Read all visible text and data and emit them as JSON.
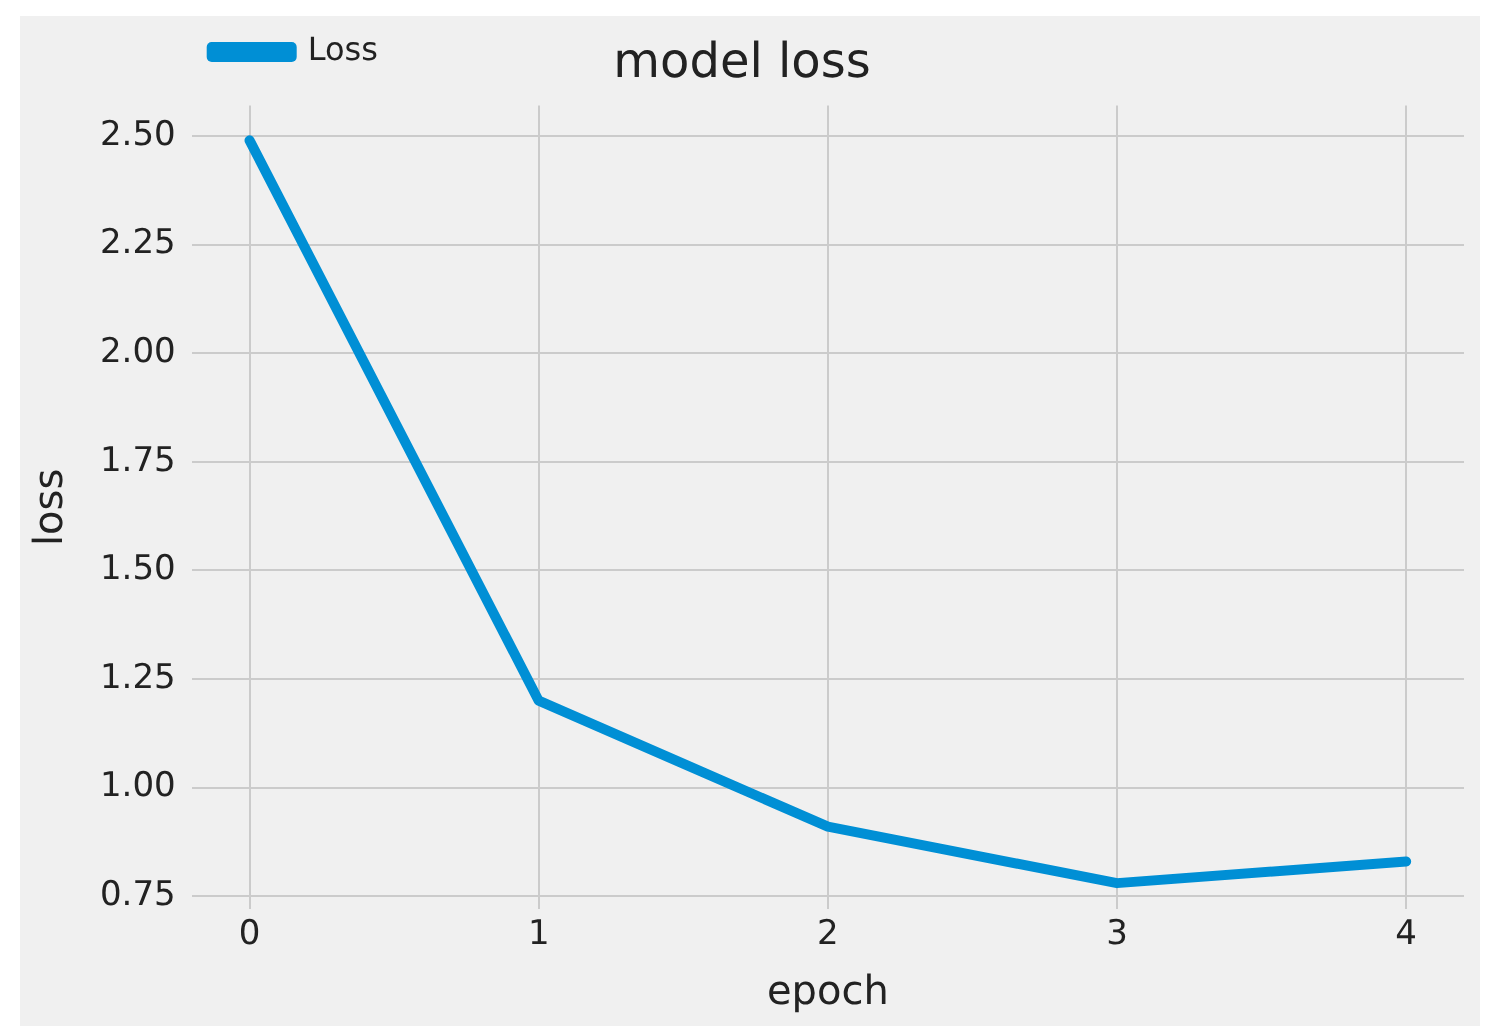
{
  "chart_data": {
    "type": "line",
    "title": "model loss",
    "xlabel": "epoch",
    "ylabel": "loss",
    "x": [
      0,
      1,
      2,
      3,
      4
    ],
    "series": [
      {
        "name": "Loss",
        "color": "#008fd5",
        "values": [
          2.49,
          1.2,
          0.91,
          0.78,
          0.83
        ]
      }
    ],
    "xlim": [
      -0.2,
      4.2
    ],
    "xticks": [
      0,
      1,
      2,
      3,
      4
    ],
    "ylim": [
      0.72,
      2.57
    ],
    "yticks": [
      {
        "value": 0.75,
        "label": "0.75"
      },
      {
        "value": 1,
        "label": "1.00"
      },
      {
        "value": 1.25,
        "label": "1.25"
      },
      {
        "value": 1.5,
        "label": "1.50"
      },
      {
        "value": 1.75,
        "label": "1.75"
      },
      {
        "value": 2,
        "label": "2.00"
      },
      {
        "value": 2.25,
        "label": "2.25"
      },
      {
        "value": 2.5,
        "label": "2.50"
      }
    ],
    "grid": true,
    "legend": "top left",
    "marker": "none",
    "line_style": "solid"
  }
}
